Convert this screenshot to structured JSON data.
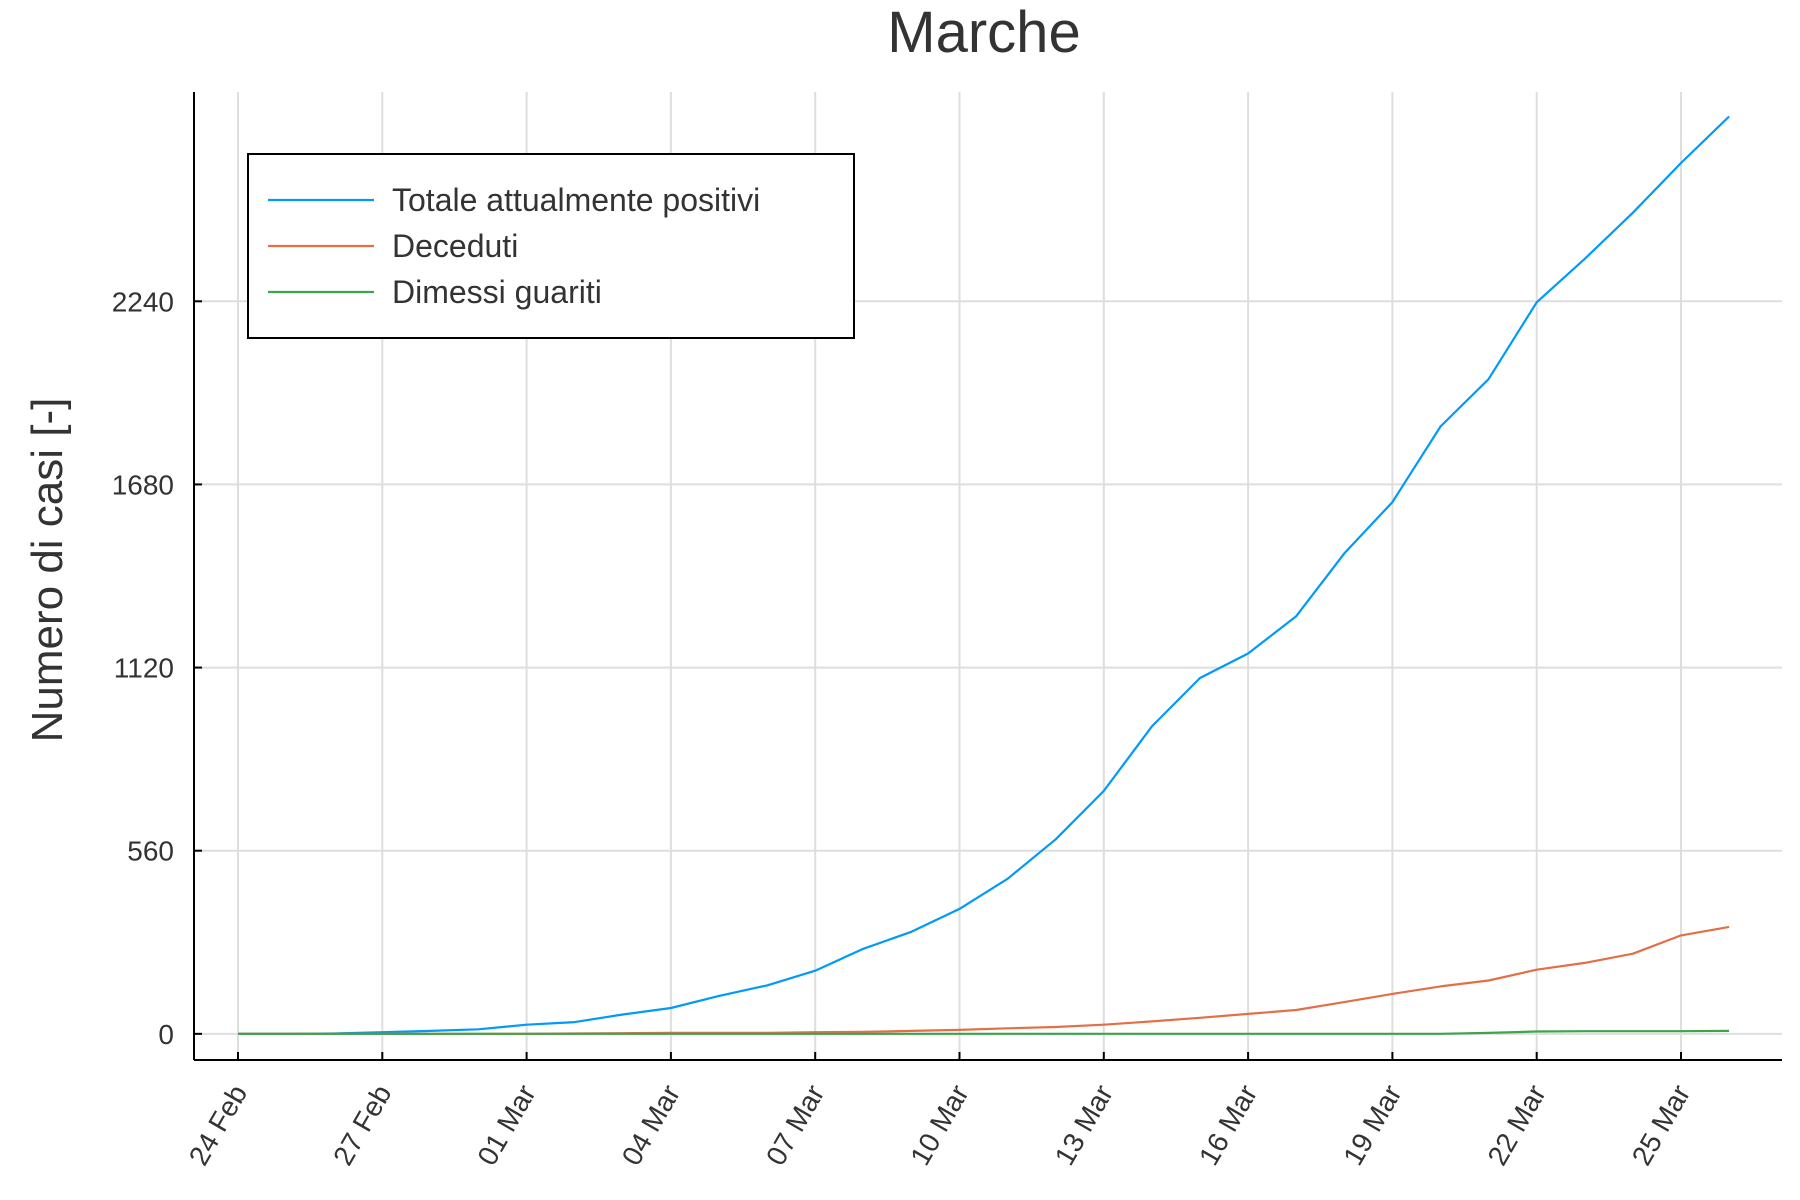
{
  "chart_data": {
    "type": "line",
    "title": "Marche",
    "xlabel": "",
    "ylabel": "Numero di casi [-]",
    "x": [
      "24 Feb",
      "25 Feb",
      "26 Feb",
      "27 Feb",
      "28 Feb",
      "29 Feb",
      "01 Mar",
      "02 Mar",
      "03 Mar",
      "04 Mar",
      "05 Mar",
      "06 Mar",
      "07 Mar",
      "08 Mar",
      "09 Mar",
      "10 Mar",
      "11 Mar",
      "12 Mar",
      "13 Mar",
      "14 Mar",
      "15 Mar",
      "16 Mar",
      "17 Mar",
      "18 Mar",
      "19 Mar",
      "20 Mar",
      "21 Mar",
      "22 Mar",
      "23 Mar",
      "24 Mar",
      "25 Mar",
      "26 Mar"
    ],
    "x_tick_labels": [
      "24 Feb",
      "27 Feb",
      "01 Mar",
      "04 Mar",
      "07 Mar",
      "10 Mar",
      "13 Mar",
      "16 Mar",
      "19 Mar",
      "22 Mar",
      "25 Mar"
    ],
    "y_ticks": [
      0,
      560,
      1120,
      1680,
      2240
    ],
    "ylim": [
      -80,
      2880
    ],
    "grid": true,
    "legend_position": "top-left",
    "series": [
      {
        "name": "Totale attualmente positivi",
        "color": "#009af9",
        "values": [
          0,
          0,
          1,
          5,
          9,
          14,
          28,
          36,
          59,
          79,
          116,
          148,
          193,
          260,
          312,
          382,
          474,
          595,
          743,
          940,
          1088,
          1163,
          1277,
          1469,
          1626,
          1857,
          2002,
          2237,
          2370,
          2511,
          2663,
          2805
        ]
      },
      {
        "name": "Deceduti",
        "color": "#e26f46",
        "values": [
          0,
          0,
          0,
          0,
          0,
          0,
          0,
          1,
          2,
          3,
          3,
          3,
          5,
          6,
          9,
          12,
          17,
          21,
          28,
          38,
          49,
          61,
          73,
          97,
          122,
          145,
          163,
          196,
          217,
          245,
          301,
          327
        ]
      },
      {
        "name": "Dimessi guariti",
        "color": "#3da44d",
        "values": [
          0,
          0,
          0,
          0,
          0,
          0,
          0,
          0,
          0,
          0,
          0,
          0,
          0,
          0,
          0,
          0,
          0,
          0,
          0,
          0,
          0,
          0,
          0,
          0,
          0,
          0,
          3,
          7,
          8,
          8,
          8,
          9
        ]
      }
    ]
  }
}
